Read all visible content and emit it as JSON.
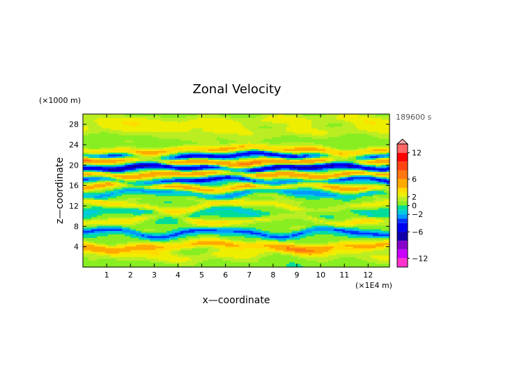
{
  "chart_data": {
    "type": "heatmap",
    "title": "Zonal Velocity",
    "xlabel": "x—coordinate",
    "ylabel": "z—coordinate",
    "x_unit": "(×1E4 m)",
    "y_unit": "(×1000 m)",
    "time_label": "189600 s",
    "xlim": [
      0,
      12.9
    ],
    "ylim": [
      0,
      30
    ],
    "x_ticks": [
      "1",
      "2",
      "3",
      "4",
      "5",
      "6",
      "7",
      "8",
      "9",
      "10",
      "11",
      "12"
    ],
    "x_tick_values": [
      1,
      2,
      3,
      4,
      5,
      6,
      7,
      8,
      9,
      10,
      11,
      12
    ],
    "y_ticks": [
      "4",
      "8",
      "12",
      "16",
      "20",
      "24",
      "28"
    ],
    "y_tick_values": [
      4,
      8,
      12,
      16,
      20,
      24,
      28
    ],
    "colorbar": {
      "labels": [
        "12",
        "6",
        "2",
        "0",
        "−2",
        "−6",
        "−12"
      ],
      "label_values": [
        12,
        6,
        2,
        0,
        -2,
        -6,
        -12
      ],
      "levels": [
        -14,
        -12,
        -10,
        -8,
        -6,
        -4,
        -3,
        -2,
        -1,
        0,
        1,
        2,
        3,
        4,
        6,
        8,
        10,
        12,
        14
      ],
      "colors": [
        "#ff33cc",
        "#cc00ff",
        "#8800cc",
        "#1100aa",
        "#0000ee",
        "#0033ff",
        "#0099ff",
        "#00ccdd",
        "#00dd99",
        "#88ee22",
        "#bbee22",
        "#eeee00",
        "#ffdd00",
        "#ffaa00",
        "#ff7711",
        "#ff4411",
        "#ff0000",
        "#ff6666",
        "#ffaaaa"
      ]
    },
    "bands": [
      {
        "z": 1.0,
        "v": 0.6,
        "w": 0.9,
        "amp": 0.5,
        "freq": 0.9
      },
      {
        "z": 2.6,
        "v": 2.2,
        "w": 1.0,
        "amp": 0.6,
        "freq": 0.7
      },
      {
        "z": 4.2,
        "v": 4.0,
        "w": 0.9,
        "amp": 0.5,
        "freq": 0.8
      },
      {
        "z": 5.6,
        "v": 0.2,
        "w": 0.8,
        "amp": 0.6,
        "freq": 1.1
      },
      {
        "z": 6.8,
        "v": -3.5,
        "w": 0.6,
        "amp": 0.7,
        "freq": 1.3
      },
      {
        "z": 8.0,
        "v": 0.8,
        "w": 0.8,
        "amp": 0.5,
        "freq": 1.0
      },
      {
        "z": 9.4,
        "v": 2.5,
        "w": 0.7,
        "amp": 0.7,
        "freq": 1.2
      },
      {
        "z": 10.8,
        "v": -1.4,
        "w": 0.7,
        "amp": 0.8,
        "freq": 1.4
      },
      {
        "z": 12.0,
        "v": 2.8,
        "w": 0.7,
        "amp": 0.8,
        "freq": 1.0
      },
      {
        "z": 13.4,
        "v": 1.0,
        "w": 0.6,
        "amp": 0.7,
        "freq": 1.5
      },
      {
        "z": 14.6,
        "v": -2.5,
        "w": 0.6,
        "amp": 0.6,
        "freq": 1.2
      },
      {
        "z": 15.8,
        "v": 4.5,
        "w": 0.7,
        "amp": 0.5,
        "freq": 0.9
      },
      {
        "z": 17.0,
        "v": -4.5,
        "w": 0.6,
        "amp": 0.5,
        "freq": 1.1
      },
      {
        "z": 18.3,
        "v": 5.5,
        "w": 0.7,
        "amp": 0.4,
        "freq": 0.8
      },
      {
        "z": 19.5,
        "v": -6.5,
        "w": 0.6,
        "amp": 0.4,
        "freq": 0.9
      },
      {
        "z": 20.8,
        "v": 6.0,
        "w": 0.7,
        "amp": 0.4,
        "freq": 0.7
      },
      {
        "z": 21.8,
        "v": -5.0,
        "w": 0.6,
        "amp": 0.4,
        "freq": 0.8
      },
      {
        "z": 23.0,
        "v": 4.0,
        "w": 0.7,
        "amp": 0.4,
        "freq": 0.6
      },
      {
        "z": 24.6,
        "v": 0.8,
        "w": 0.9,
        "amp": 0.5,
        "freq": 0.6
      },
      {
        "z": 26.8,
        "v": 2.0,
        "w": 1.2,
        "amp": 0.3,
        "freq": 0.5
      },
      {
        "z": 28.8,
        "v": 2.2,
        "w": 1.2,
        "amp": 0.3,
        "freq": 0.5
      }
    ]
  }
}
